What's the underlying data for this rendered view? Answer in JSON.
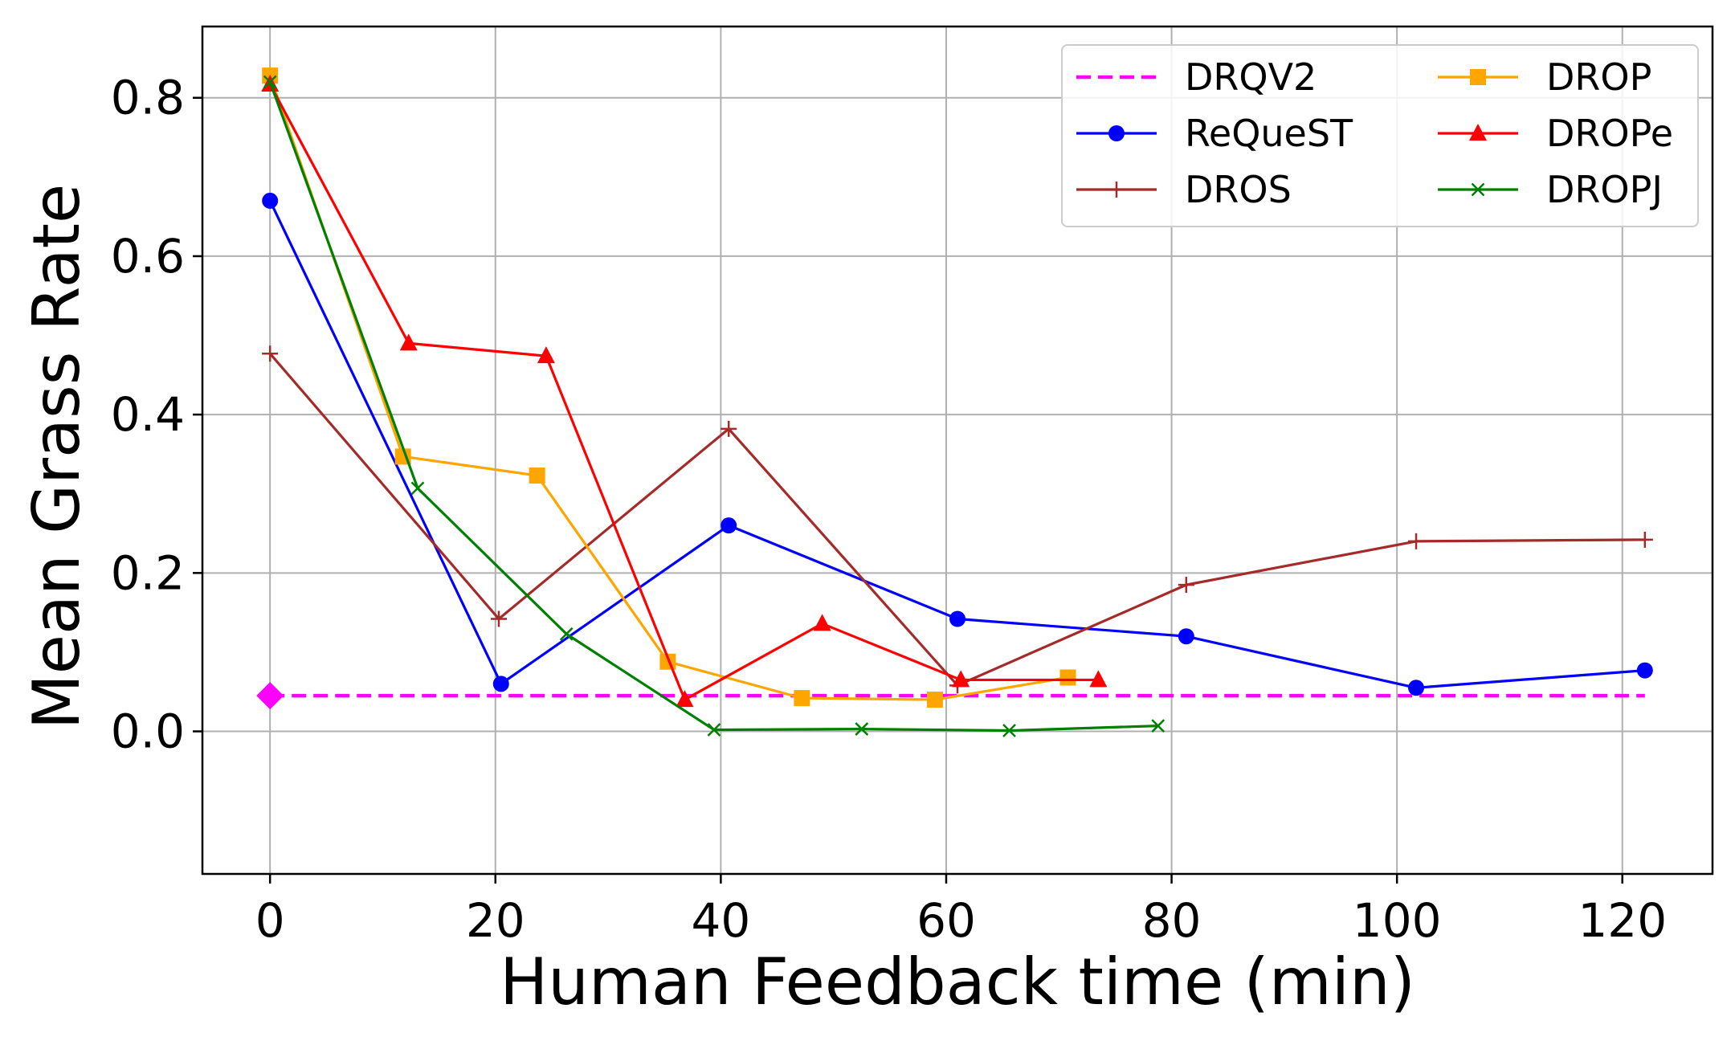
{
  "chart_data": {
    "type": "line",
    "xlabel": "Human Feedback time (min)",
    "ylabel": "Mean Grass Rate",
    "xlim": [
      -6,
      128
    ],
    "ylim": [
      -0.18,
      0.89
    ],
    "xticks": [
      "0",
      "20",
      "40",
      "60",
      "80",
      "100",
      "120"
    ],
    "yticks": [
      "0.0",
      "0.2",
      "0.4",
      "0.6",
      "0.8"
    ],
    "grid": true,
    "legend_position": "top-right",
    "legend_columns": 2,
    "series": [
      {
        "name": "DRQV2",
        "color": "#ff00ff",
        "style": "dashed",
        "marker": "none",
        "x": [
          0,
          122
        ],
        "y": [
          0.045,
          0.045
        ],
        "start_marker": {
          "shape": "diamond",
          "x": 0,
          "y": 0.045
        }
      },
      {
        "name": "ReQueST",
        "color": "#0000ff",
        "style": "solid",
        "marker": "circle",
        "x": [
          0,
          20.5,
          40.7,
          61,
          81.3,
          101.7,
          122
        ],
        "y": [
          0.67,
          0.06,
          0.26,
          0.142,
          0.12,
          0.055,
          0.077
        ]
      },
      {
        "name": "DROS",
        "color": "#a52a2a",
        "style": "solid",
        "marker": "plus",
        "x": [
          0,
          20.3,
          40.7,
          61,
          81.3,
          101.7,
          122
        ],
        "y": [
          0.477,
          0.142,
          0.382,
          0.058,
          0.185,
          0.24,
          0.242
        ]
      },
      {
        "name": "DROP",
        "color": "#ffa500",
        "style": "solid",
        "marker": "square",
        "x": [
          0,
          11.8,
          23.7,
          35.3,
          47.2,
          59,
          70.8
        ],
        "y": [
          0.828,
          0.347,
          0.323,
          0.088,
          0.042,
          0.04,
          0.068
        ]
      },
      {
        "name": "DROPe",
        "color": "#ff0000",
        "style": "solid",
        "marker": "triangle",
        "x": [
          0,
          12.3,
          24.5,
          36.8,
          49,
          61.3,
          73.5
        ],
        "y": [
          0.817,
          0.49,
          0.474,
          0.04,
          0.136,
          0.065,
          0.065
        ]
      },
      {
        "name": "DROPJ",
        "color": "#008000",
        "style": "solid",
        "marker": "x",
        "x": [
          0,
          13.1,
          26.3,
          39.4,
          52.5,
          65.6,
          78.8
        ],
        "y": [
          0.82,
          0.307,
          0.123,
          0.002,
          0.003,
          0.001,
          0.007
        ]
      }
    ]
  }
}
